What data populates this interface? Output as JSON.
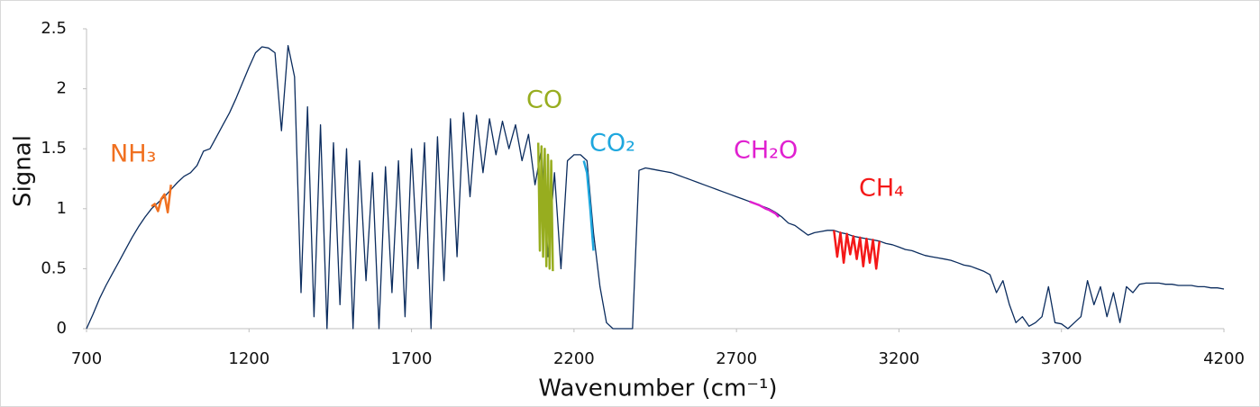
{
  "chart_data": {
    "type": "line",
    "xlabel": "Wavenumber (cm⁻¹)",
    "ylabel": "Signal",
    "xlim": [
      700,
      4200
    ],
    "ylim": [
      0,
      2.5
    ],
    "xticks": [
      700,
      1200,
      1700,
      2200,
      2700,
      3200,
      3700,
      4200
    ],
    "yticks": [
      0,
      0.5,
      1,
      1.5,
      2,
      2.5
    ],
    "grid": false,
    "x": [
      700,
      720,
      740,
      760,
      780,
      800,
      820,
      840,
      860,
      880,
      900,
      920,
      940,
      960,
      980,
      1000,
      1020,
      1040,
      1060,
      1080,
      1100,
      1120,
      1140,
      1160,
      1180,
      1200,
      1220,
      1240,
      1260,
      1280,
      1300,
      1320,
      1340,
      1360,
      1380,
      1400,
      1420,
      1440,
      1460,
      1480,
      1500,
      1520,
      1540,
      1560,
      1580,
      1600,
      1620,
      1640,
      1660,
      1680,
      1700,
      1720,
      1740,
      1760,
      1780,
      1800,
      1820,
      1840,
      1860,
      1880,
      1900,
      1920,
      1940,
      1960,
      1980,
      2000,
      2020,
      2040,
      2060,
      2080,
      2100,
      2120,
      2140,
      2160,
      2180,
      2200,
      2220,
      2240,
      2260,
      2280,
      2300,
      2320,
      2340,
      2360,
      2380,
      2400,
      2420,
      2440,
      2460,
      2480,
      2500,
      2520,
      2540,
      2560,
      2580,
      2600,
      2620,
      2640,
      2660,
      2680,
      2700,
      2720,
      2740,
      2760,
      2780,
      2800,
      2820,
      2840,
      2860,
      2880,
      2900,
      2920,
      2940,
      2960,
      2980,
      3000,
      3020,
      3040,
      3060,
      3080,
      3100,
      3120,
      3140,
      3160,
      3180,
      3200,
      3220,
      3240,
      3260,
      3280,
      3300,
      3320,
      3340,
      3360,
      3380,
      3400,
      3420,
      3440,
      3460,
      3480,
      3500,
      3520,
      3540,
      3560,
      3580,
      3600,
      3620,
      3640,
      3660,
      3680,
      3700,
      3720,
      3740,
      3760,
      3780,
      3800,
      3820,
      3840,
      3860,
      3880,
      3900,
      3920,
      3940,
      3960,
      3980,
      4000,
      4020,
      4040,
      4060,
      4080,
      4100,
      4120,
      4140,
      4160,
      4180,
      4200
    ],
    "series": [
      {
        "color": "#0b2c5e",
        "values": [
          0,
          0.12,
          0.25,
          0.36,
          0.46,
          0.56,
          0.66,
          0.76,
          0.85,
          0.93,
          1.0,
          1.05,
          1.1,
          1.16,
          1.22,
          1.27,
          1.3,
          1.36,
          1.48,
          1.5,
          1.6,
          1.7,
          1.8,
          1.92,
          2.05,
          2.18,
          2.3,
          2.35,
          2.34,
          2.3,
          1.65,
          2.36,
          2.1,
          0.3,
          1.85,
          0.1,
          1.7,
          0,
          1.55,
          0.2,
          1.5,
          0,
          1.4,
          0.4,
          1.3,
          0,
          1.35,
          0.3,
          1.4,
          0.1,
          1.5,
          0.5,
          1.55,
          0,
          1.6,
          0.4,
          1.75,
          0.6,
          1.8,
          1.1,
          1.78,
          1.3,
          1.75,
          1.45,
          1.73,
          1.5,
          1.7,
          1.4,
          1.62,
          1.2,
          1.5,
          0.6,
          1.3,
          0.5,
          1.4,
          1.45,
          1.45,
          1.4,
          0.8,
          0.35,
          0.05,
          0,
          0,
          0,
          0,
          1.32,
          1.34,
          1.33,
          1.32,
          1.31,
          1.3,
          1.28,
          1.26,
          1.24,
          1.22,
          1.2,
          1.18,
          1.16,
          1.14,
          1.12,
          1.1,
          1.08,
          1.06,
          1.04,
          1.02,
          1.0,
          0.97,
          0.93,
          0.88,
          0.86,
          0.82,
          0.78,
          0.8,
          0.81,
          0.82,
          0.82,
          0.8,
          0.79,
          0.77,
          0.76,
          0.75,
          0.74,
          0.73,
          0.71,
          0.7,
          0.68,
          0.66,
          0.65,
          0.63,
          0.61,
          0.6,
          0.59,
          0.58,
          0.57,
          0.55,
          0.53,
          0.52,
          0.5,
          0.48,
          0.45,
          0.3,
          0.4,
          0.2,
          0.05,
          0.1,
          0.02,
          0.05,
          0.1,
          0.35,
          0.05,
          0.04,
          0,
          0.05,
          0.1,
          0.4,
          0.2,
          0.35,
          0.1,
          0.3,
          0.05,
          0.35,
          0.3,
          0.37,
          0.38,
          0.38,
          0.38,
          0.37,
          0.37,
          0.36,
          0.36,
          0.36,
          0.35,
          0.35,
          0.34,
          0.34,
          0.33
        ]
      },
      {
        "name": "NH₃",
        "color": "#f07020",
        "x": [
          900,
          910,
          920,
          930,
          940,
          950,
          960
        ],
        "values": [
          1.02,
          1.04,
          0.98,
          1.08,
          1.12,
          0.97,
          1.2
        ]
      },
      {
        "name": "CO",
        "color": "#97ad1f",
        "x": [
          2090,
          2095,
          2100,
          2105,
          2110,
          2115,
          2120,
          2125,
          2130,
          2135
        ],
        "values": [
          1.55,
          0.65,
          1.52,
          0.6,
          1.5,
          0.52,
          1.45,
          0.5,
          1.4,
          0.48
        ]
      },
      {
        "name": "CO₂",
        "color": "#1ea7de",
        "x": [
          2230,
          2240,
          2250,
          2260
        ],
        "values": [
          1.4,
          1.3,
          1.0,
          0.65
        ]
      },
      {
        "name": "CH₂O",
        "color": "#e020d0",
        "x": [
          2740,
          2760,
          2770,
          2790,
          2800,
          2820,
          2830
        ],
        "values": [
          1.06,
          1.04,
          1.03,
          1.0,
          0.99,
          0.96,
          0.93
        ]
      },
      {
        "name": "CH₄",
        "color": "#f41818",
        "x": [
          3000,
          3010,
          3020,
          3030,
          3040,
          3050,
          3060,
          3070,
          3080,
          3090,
          3100,
          3110,
          3120,
          3130,
          3140
        ],
        "values": [
          0.82,
          0.6,
          0.8,
          0.55,
          0.79,
          0.62,
          0.77,
          0.58,
          0.76,
          0.52,
          0.75,
          0.55,
          0.74,
          0.5,
          0.73
        ]
      }
    ]
  }
}
